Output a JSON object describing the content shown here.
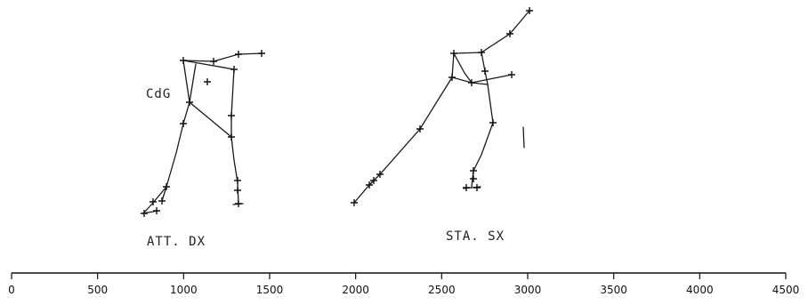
{
  "labels": {
    "cdg": "CdG",
    "left_phase": "ATT. DX",
    "right_phase": "STA. SX"
  },
  "axis": {
    "min": 0,
    "max": 4500,
    "ticks": [
      0,
      500,
      1000,
      1500,
      2000,
      2500,
      3000,
      3500,
      4000,
      4500
    ]
  }
}
